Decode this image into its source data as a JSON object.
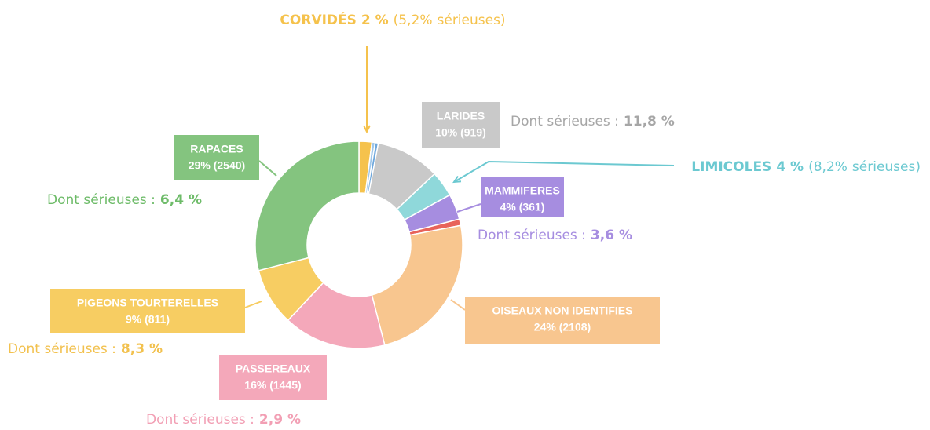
{
  "chart_data": {
    "type": "pie",
    "categories": [
      "CORVIDÉS",
      null,
      null,
      "LARIDES",
      "LIMICOLES",
      "MAMMIFERES",
      null,
      "OISEAUX NON IDENTIFIES",
      "PASSEREAUX",
      "PIGEONS TOURTERELLES",
      "RAPACES"
    ],
    "values": [
      2,
      0.5,
      0.5,
      10,
      4,
      4,
      1,
      24,
      16,
      9,
      29
    ],
    "value_labels": [
      "2 %",
      null,
      null,
      "10% (919)",
      "4 %",
      "4% (361)",
      null,
      "24% (2108)",
      "16% (1445)",
      "9% (811)",
      "29% (2540)"
    ],
    "colors": [
      "#f5c24c",
      "#9fc7ea",
      "#6fa8dc",
      "#c9c9c9",
      "#8fd8da",
      "#a68de0",
      "#e8635a",
      "#f8c68f",
      "#f4a8ba",
      "#f7cd62",
      "#84c47f"
    ],
    "serious": [
      "(5,2%",
      null,
      null,
      "11,8 %",
      "(8,2%",
      "3,6 %",
      null,
      null,
      "2,9 %",
      "8,3 %",
      "6,4 %"
    ],
    "serious_prefix": "Dont sérieuses :",
    "serious_suffix": "sérieuses)"
  }
}
